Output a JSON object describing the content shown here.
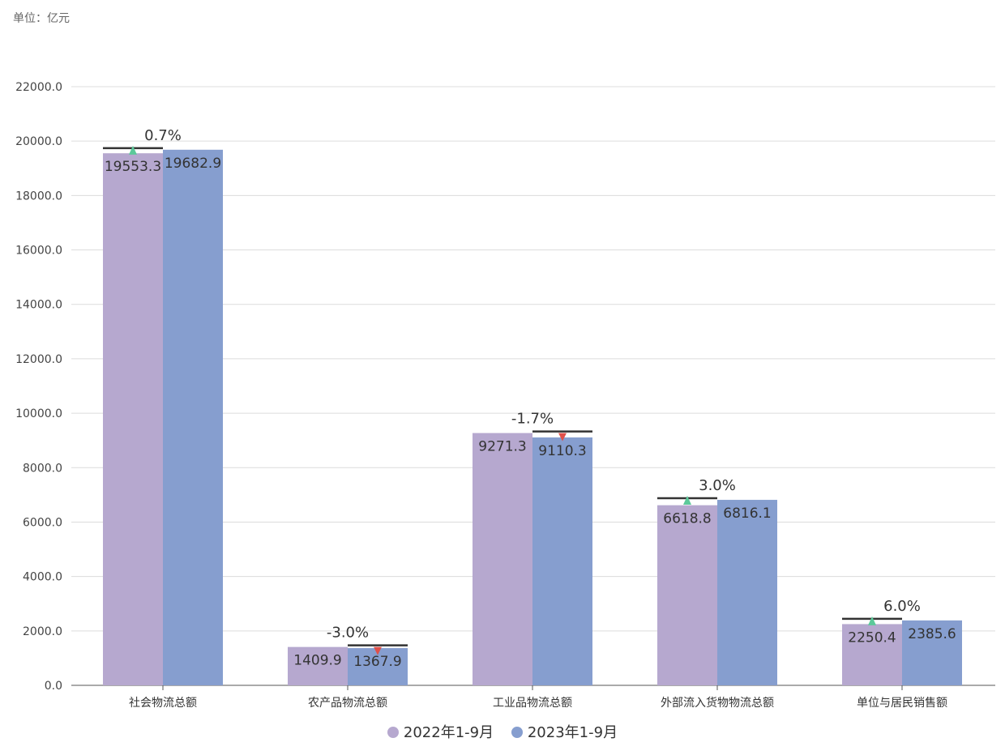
{
  "unit_label": "单位：亿元",
  "chart_data": {
    "type": "bar",
    "categories": [
      "社会物流总额",
      "农产品物流总额",
      "工业品物流总额",
      "外部流入货物物流总额",
      "单位与居民销售额"
    ],
    "series": [
      {
        "name": "2022年1-9月",
        "values": [
          19553.3,
          1409.9,
          9271.3,
          6618.8,
          2250.4
        ],
        "color": "#b6a8cf"
      },
      {
        "name": "2023年1-9月",
        "values": [
          19682.9,
          1367.9,
          9110.3,
          6816.1,
          2385.6
        ],
        "color": "#869ecf"
      }
    ],
    "growth": [
      "0.7%",
      "-3.0%",
      "-1.7%",
      "3.0%",
      "6.0%"
    ],
    "ylim": [
      0,
      22000
    ],
    "yticks": [
      "0.0",
      "2000.0",
      "4000.0",
      "6000.0",
      "8000.0",
      "10000.0",
      "12000.0",
      "14000.0",
      "16000.0",
      "18000.0",
      "20000.0",
      "22000.0"
    ],
    "grid": true,
    "legend_position": "bottom",
    "up_color": "#5cc99a",
    "down_color": "#e0504a"
  }
}
